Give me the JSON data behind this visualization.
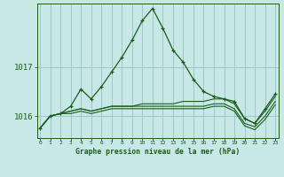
{
  "title": "Graphe pression niveau de la mer (hPa)",
  "background_color": "#c8e8e8",
  "line_color": "#1a5c1a",
  "grid_color": "#a0c8c8",
  "x_ticks": [
    0,
    1,
    2,
    3,
    4,
    5,
    6,
    7,
    8,
    9,
    10,
    11,
    12,
    13,
    14,
    15,
    16,
    17,
    18,
    19,
    20,
    21,
    22,
    23
  ],
  "y_ticks": [
    1016,
    1017
  ],
  "ylim": [
    1015.55,
    1018.3
  ],
  "xlim": [
    -0.3,
    23.3
  ],
  "series": {
    "main": [
      1015.75,
      1016.0,
      1016.05,
      1016.2,
      1016.55,
      1016.35,
      1016.6,
      1016.9,
      1017.2,
      1017.55,
      1017.95,
      1018.2,
      1017.8,
      1017.35,
      1017.1,
      1016.75,
      1016.5,
      1016.4,
      1016.35,
      1016.3,
      1015.95,
      1015.85,
      1016.15,
      1016.45
    ],
    "low1": [
      1015.75,
      1016.0,
      1016.05,
      1016.1,
      1016.15,
      1016.1,
      1016.15,
      1016.2,
      1016.2,
      1016.2,
      1016.25,
      1016.25,
      1016.25,
      1016.25,
      1016.3,
      1016.3,
      1016.3,
      1016.35,
      1016.35,
      1016.25,
      1015.95,
      1015.85,
      1016.1,
      1016.4
    ],
    "low2": [
      1015.75,
      1016.0,
      1016.05,
      1016.1,
      1016.15,
      1016.1,
      1016.15,
      1016.2,
      1016.2,
      1016.2,
      1016.2,
      1016.2,
      1016.2,
      1016.2,
      1016.2,
      1016.2,
      1016.2,
      1016.25,
      1016.25,
      1016.15,
      1015.85,
      1015.78,
      1016.0,
      1016.3
    ],
    "low3": [
      1015.75,
      1016.0,
      1016.05,
      1016.05,
      1016.1,
      1016.05,
      1016.1,
      1016.15,
      1016.15,
      1016.15,
      1016.15,
      1016.15,
      1016.15,
      1016.15,
      1016.15,
      1016.15,
      1016.15,
      1016.2,
      1016.2,
      1016.1,
      1015.8,
      1015.72,
      1015.93,
      1016.23
    ]
  }
}
